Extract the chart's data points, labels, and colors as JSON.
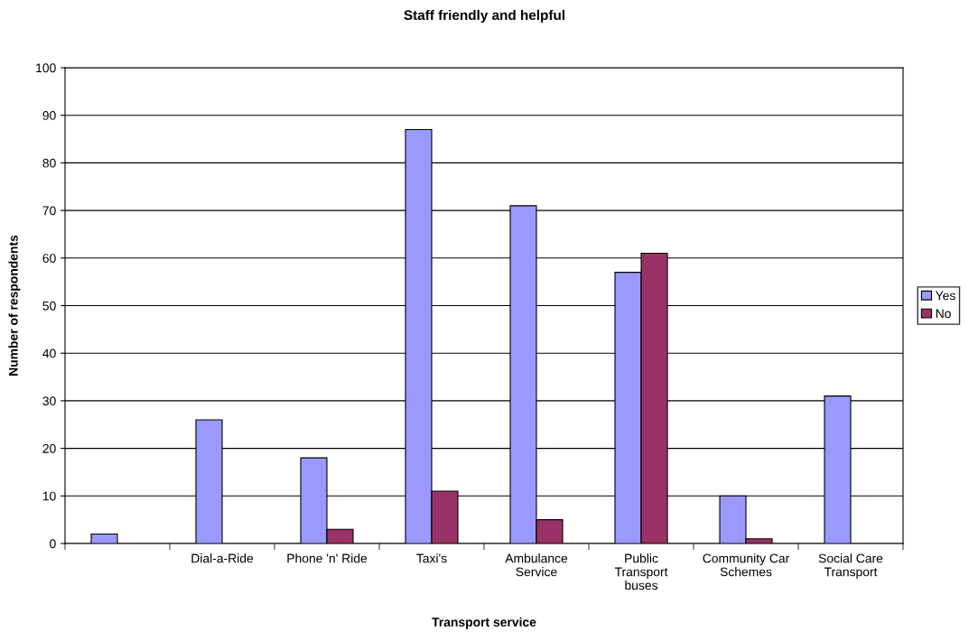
{
  "chart_data": {
    "type": "bar",
    "title": "Staff friendly and helpful",
    "xlabel": "Transport service",
    "ylabel": "Number of respondents",
    "categories": [
      null,
      "Dial-a-Ride",
      "Phone 'n' Ride",
      "Taxi's",
      "Ambulance Service",
      "Public Transport buses",
      "Community Car Schemes",
      "Social Care Transport"
    ],
    "series": [
      {
        "name": "Yes",
        "color": "#9999ff",
        "values": [
          2,
          26,
          18,
          87,
          71,
          57,
          10,
          31
        ]
      },
      {
        "name": "No",
        "color": "#993366",
        "values": [
          null,
          null,
          3,
          11,
          5,
          61,
          1,
          null
        ]
      }
    ],
    "ylim": [
      0,
      100
    ],
    "yticks": [
      0,
      10,
      20,
      30,
      40,
      50,
      60,
      70,
      80,
      90,
      100
    ],
    "grid": "y",
    "legend": "right"
  }
}
